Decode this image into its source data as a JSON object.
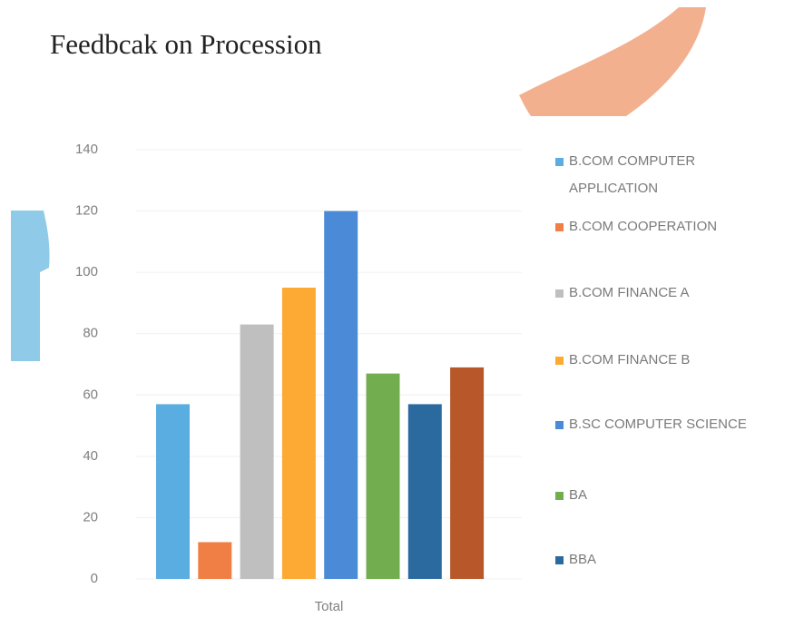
{
  "chart_data": {
    "type": "bar",
    "title": "Feedbcak on Procession",
    "categories": [
      "Total"
    ],
    "series": [
      {
        "name": "B.COM COMPUTER APPLICATION",
        "color": "#5aade0",
        "values": [
          57
        ]
      },
      {
        "name": "B.COM COOPERATION",
        "color": "#f07f45",
        "values": [
          12
        ]
      },
      {
        "name": "B.COM FINANCE A",
        "color": "#bfbfbf",
        "values": [
          83
        ]
      },
      {
        "name": "B.COM FINANCE B",
        "color": "#fcaa34",
        "values": [
          95
        ]
      },
      {
        "name": "B.SC COMPUTER SCIENCE",
        "color": "#4a8ad6",
        "values": [
          120
        ]
      },
      {
        "name": "BA",
        "color": "#72ad4f",
        "values": [
          67
        ]
      },
      {
        "name": "BBA",
        "color": "#2b6a9f",
        "values": [
          57
        ]
      },
      {
        "name": null,
        "color": "#b8582a",
        "values": [
          69
        ]
      }
    ],
    "ylim": [
      0,
      140
    ],
    "yticks": [
      0,
      20,
      40,
      60,
      80,
      100,
      120,
      140
    ],
    "grid": true
  }
}
